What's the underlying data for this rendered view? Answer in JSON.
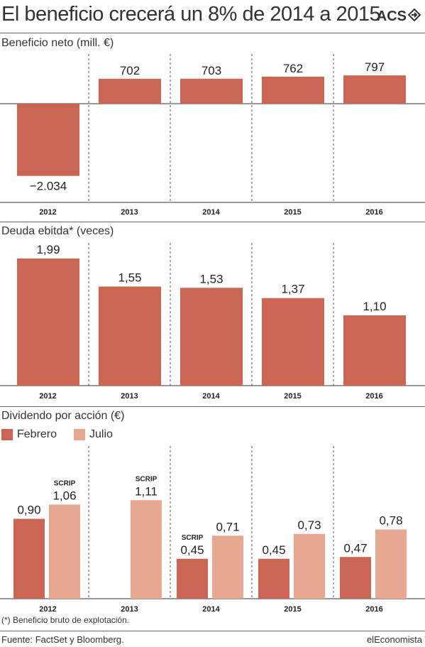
{
  "title": "El beneficio crecerá un 8% de 2014 a 2015",
  "brand": "ACS",
  "brand_icon": "diamond-arrow-icon",
  "colors": {
    "febrero": "#cc6654",
    "julio": "#e6a891",
    "axis": "#333333"
  },
  "chart_data": [
    {
      "type": "bar",
      "title": "Beneficio neto (mill. €)",
      "categories": [
        "2012",
        "2013",
        "2014",
        "2015",
        "2016"
      ],
      "values": [
        -2034,
        702,
        703,
        762,
        797
      ],
      "labels": [
        "−2.034",
        "702",
        "703",
        "762",
        "797"
      ]
    },
    {
      "type": "bar",
      "title": "Deuda ebitda* (veces)",
      "categories": [
        "2012",
        "2013",
        "2014",
        "2015",
        "2016"
      ],
      "values": [
        1.99,
        1.55,
        1.53,
        1.37,
        1.1
      ],
      "labels": [
        "1,99",
        "1,55",
        "1,53",
        "1,37",
        "1,10"
      ]
    },
    {
      "type": "bar",
      "title": "Dividendo por acción (€)",
      "categories": [
        "2012",
        "2013",
        "2014",
        "2015",
        "2016"
      ],
      "series": [
        {
          "name": "Febrero",
          "values": [
            0.9,
            null,
            0.45,
            0.45,
            0.47
          ],
          "labels": [
            "0,90",
            "",
            "0,45",
            "0,45",
            "0,47"
          ],
          "tags": [
            "",
            "",
            "SCRIP",
            "",
            ""
          ]
        },
        {
          "name": "Julio",
          "values": [
            1.06,
            1.11,
            0.71,
            0.73,
            0.78
          ],
          "labels": [
            "1,06",
            "1,11",
            "0,71",
            "0,73",
            "0,78"
          ],
          "tags": [
            "SCRIP",
            "SCRIP",
            "",
            "",
            ""
          ]
        }
      ]
    }
  ],
  "note": "(*) Beneficio bruto de explotación.",
  "source": "Fuente: FactSet y Bloomberg.",
  "publisher": "elEconomista"
}
